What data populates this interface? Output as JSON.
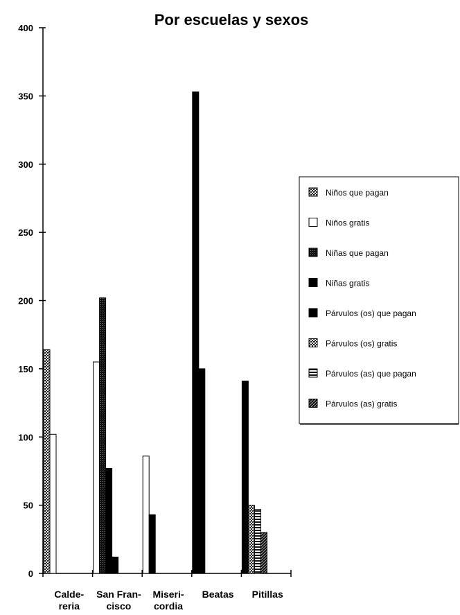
{
  "chart_data": {
    "type": "bar",
    "title": "Por escuelas y sexos",
    "xlabel": "",
    "ylabel": "",
    "ylim": [
      0,
      400
    ],
    "yticks": [
      "0",
      "50",
      "100",
      "150",
      "200",
      "250",
      "300",
      "350",
      "400"
    ],
    "categories": [
      [
        "Calde-",
        "reria"
      ],
      [
        "San Fran-",
        "cisco"
      ],
      [
        "Miseri-",
        "cordia"
      ],
      [
        "Beatas"
      ],
      [
        "Pitillas"
      ]
    ],
    "legend_position": "right",
    "series": [
      {
        "name": "Niños que pagan",
        "pattern": "dots",
        "values": [
          164,
          0,
          0,
          0,
          0
        ]
      },
      {
        "name": "Niños gratis",
        "pattern": "white",
        "values": [
          102,
          155,
          86,
          0,
          0
        ]
      },
      {
        "name": "Niñas que pagan",
        "pattern": "darkdots",
        "values": [
          0,
          202,
          0,
          0,
          0
        ]
      },
      {
        "name": "Niñas gratis",
        "pattern": "black",
        "values": [
          0,
          77,
          43,
          353,
          141
        ]
      },
      {
        "name": "Párvulos (os) que pagan",
        "pattern": "black",
        "values": [
          0,
          12,
          0,
          150,
          0
        ]
      },
      {
        "name": "Párvulos (os) gratis",
        "pattern": "dots",
        "values": [
          0,
          0,
          0,
          0,
          50
        ]
      },
      {
        "name": "Párvulos (as) que pagan",
        "pattern": "hlines",
        "values": [
          0,
          0,
          0,
          0,
          47
        ]
      },
      {
        "name": "Párvulos (as) gratis",
        "pattern": "diag",
        "values": [
          0,
          0,
          0,
          0,
          30
        ]
      }
    ]
  },
  "colors": {
    "ink": "#000000",
    "paper": "#ffffff",
    "dot": "#3a3a3a"
  }
}
